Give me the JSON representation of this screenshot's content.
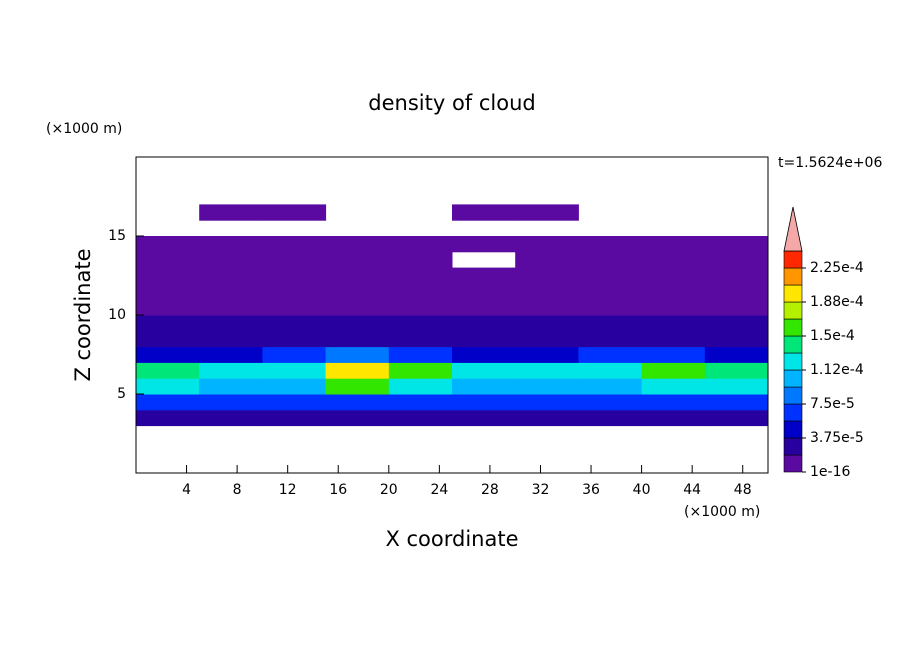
{
  "chart_data": {
    "type": "contour",
    "title": "density of cloud",
    "annotation": "t=1.5624e+06",
    "x_label": "X coordinate",
    "y_label": "Z coordinate",
    "x_unit": "(×1000 m)",
    "y_unit": "(×1000 m)",
    "x": [
      2.5,
      7.5,
      12.5,
      17.5,
      22.5,
      27.5,
      32.5,
      37.5,
      42.5,
      47.5
    ],
    "z": [
      3.5,
      4.5,
      5.5,
      6.5,
      7.5,
      8.5,
      9.5,
      10.5,
      11.5,
      12.5,
      13.5,
      14.5,
      15.5,
      16.5
    ],
    "values": [
      [
        2e-05,
        2e-05,
        2e-05,
        2e-05,
        2e-05,
        2e-05,
        2e-05,
        2e-05,
        2e-05,
        2e-05
      ],
      [
        6e-05,
        7e-05,
        6e-05,
        6e-05,
        6e-05,
        6e-05,
        6e-05,
        6e-05,
        6e-05,
        6e-05
      ],
      [
        0.00012,
        0.00011,
        0.00011,
        0.00015,
        0.00013,
        0.00011,
        0.00011,
        0.00011,
        0.00012,
        0.00012
      ],
      [
        0.00014,
        0.00012,
        0.00013,
        0.0002,
        0.00016,
        0.00013,
        0.00012,
        0.00013,
        0.00015,
        0.00014
      ],
      [
        4e-05,
        5e-05,
        6e-05,
        8e-05,
        6e-05,
        5e-05,
        5e-05,
        6e-05,
        7e-05,
        5e-05
      ],
      [
        3.5e-05,
        3.5e-05,
        3.5e-05,
        3.5e-05,
        3.5e-05,
        3.5e-05,
        3.5e-05,
        3.5e-05,
        3.5e-05,
        3.5e-05
      ],
      [
        2.5e-05,
        2.5e-05,
        2.5e-05,
        2.5e-05,
        2.5e-05,
        2.5e-05,
        2.5e-05,
        2.5e-05,
        2.5e-05,
        2.5e-05
      ],
      [
        1e-05,
        1e-05,
        1e-05,
        1e-05,
        1e-05,
        1e-05,
        1e-05,
        1e-05,
        1e-05,
        1e-05
      ],
      [
        5e-06,
        5e-06,
        5e-06,
        5e-06,
        5e-06,
        5e-06,
        5e-06,
        5e-06,
        5e-06,
        5e-06
      ],
      [
        5e-06,
        5e-06,
        5e-06,
        5e-06,
        5e-06,
        5e-06,
        5e-06,
        5e-06,
        5e-06,
        5e-06
      ],
      [
        5e-06,
        5e-06,
        5e-06,
        5e-06,
        5e-06,
        0,
        5e-06,
        5e-06,
        5e-06,
        5e-06
      ],
      [
        5e-06,
        5e-06,
        5e-06,
        5e-06,
        5e-06,
        5e-06,
        5e-06,
        5e-06,
        5e-06,
        5e-06
      ],
      [
        0,
        0,
        0,
        0,
        0,
        0,
        0,
        0,
        0,
        0
      ],
      [
        0,
        5e-06,
        5e-06,
        0,
        0,
        5e-06,
        5e-06,
        0,
        0,
        0
      ]
    ],
    "xlim": [
      0,
      50
    ],
    "xticks": [
      4,
      8,
      12,
      16,
      20,
      24,
      28,
      32,
      36,
      40,
      44,
      48
    ],
    "ylim": [
      0,
      20
    ],
    "yticks": [
      5,
      10,
      15
    ],
    "levels": [
      1e-16,
      1.875e-05,
      3.75e-05,
      5.625e-05,
      7.5e-05,
      9.375e-05,
      0.0001125,
      0.00013125,
      0.00015,
      0.00016875,
      0.0001875,
      0.00020625,
      0.000225,
      0.00024375
    ],
    "colors": [
      "#5a0aa0",
      "#2800a0",
      "#0000c8",
      "#0032ff",
      "#0078ff",
      "#00b4ff",
      "#00e6e6",
      "#00e678",
      "#32e600",
      "#b4f000",
      "#ffe600",
      "#ff9600",
      "#ff2800"
    ],
    "extend_color": "#f4a8a8",
    "colorbar_ticks": [
      1e-16,
      {
        "value": 3.75e-05,
        "label": "3.75e-5"
      },
      {
        "value": 7.5e-05,
        "label": "7.5e-5"
      },
      {
        "value": 0.0001125,
        "label": "1.12e-4"
      },
      {
        "value": 0.00015,
        "label": "1.5e-4"
      },
      {
        "value": 0.0001875,
        "label": "1.88e-4"
      },
      {
        "value": 0.000225,
        "label": "2.25e-4"
      }
    ]
  }
}
